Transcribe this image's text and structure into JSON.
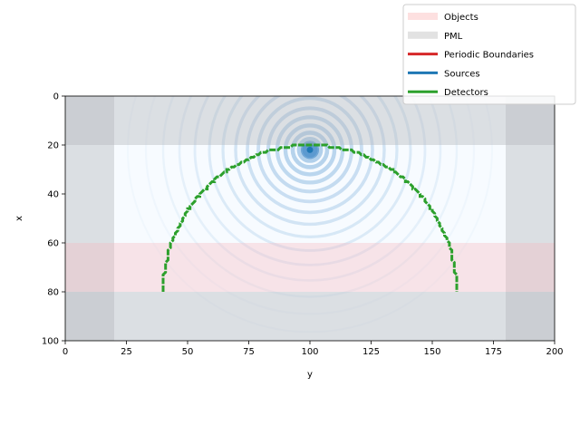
{
  "chart_data": {
    "type": "heatmap",
    "title": "",
    "xlabel": "y",
    "ylabel": "x",
    "xlim": [
      0,
      200
    ],
    "ylim": [
      100,
      0
    ],
    "x_ticks": [
      0,
      25,
      50,
      75,
      100,
      125,
      150,
      175,
      200
    ],
    "y_ticks": [
      0,
      20,
      40,
      60,
      80,
      100
    ],
    "legend_position": "top-right",
    "legend": [
      {
        "label": "Objects",
        "color": "#fde0e0",
        "kind": "patch"
      },
      {
        "label": "PML",
        "color": "#e2e2e2",
        "kind": "patch"
      },
      {
        "label": "Periodic Boundaries",
        "color": "#d62728",
        "kind": "line"
      },
      {
        "label": "Sources",
        "color": "#1f77b4",
        "kind": "line"
      },
      {
        "label": "Detectors",
        "color": "#2ca02c",
        "kind": "line"
      }
    ],
    "grid_region": {
      "y_range": [
        0,
        200
      ],
      "x_range": [
        0,
        100
      ]
    },
    "pml_regions": [
      {
        "y": [
          0,
          200
        ],
        "x": [
          0,
          20
        ]
      },
      {
        "y": [
          0,
          200
        ],
        "x": [
          80,
          100
        ]
      },
      {
        "y": [
          0,
          20
        ],
        "x": [
          0,
          100
        ]
      },
      {
        "y": [
          180,
          200
        ],
        "x": [
          0,
          100
        ]
      }
    ],
    "objects": [
      {
        "y": [
          0,
          200
        ],
        "x": [
          60,
          80
        ]
      }
    ],
    "source": {
      "y": 100,
      "x": 22
    },
    "detector": {
      "type": "semicircle",
      "center_y": 100,
      "center_x": 80,
      "radius": 60
    },
    "field_colormap": "Blues"
  }
}
